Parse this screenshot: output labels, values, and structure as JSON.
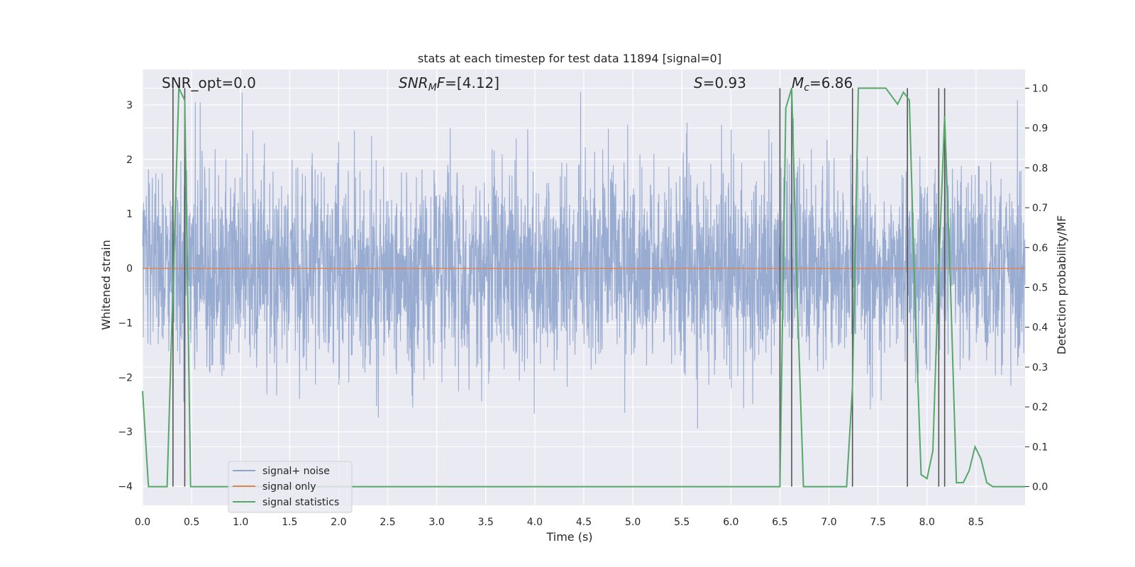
{
  "chart_data": {
    "type": "line",
    "title": "stats at each timestep for test data 11894 [signal=0]",
    "xlabel": "Time (s)",
    "ylabel_left": "Whitened strain",
    "ylabel_right": "Detection probability/MF",
    "xlim": [
      0.0,
      9.0
    ],
    "ylim_left": [
      -4.35,
      3.65
    ],
    "ylim_right": [
      -0.047,
      1.047
    ],
    "x_ticks": [
      "0.0",
      "0.5",
      "1.0",
      "1.5",
      "2.0",
      "2.5",
      "3.0",
      "3.5",
      "4.0",
      "4.5",
      "5.0",
      "5.5",
      "6.0",
      "6.5",
      "7.0",
      "7.5",
      "8.0",
      "8.5"
    ],
    "y_ticks_left": [
      "3",
      "2",
      "1",
      "0",
      "−1",
      "−2",
      "−3",
      "−4"
    ],
    "y_ticks_right": [
      "1.0",
      "0.9",
      "0.8",
      "0.7",
      "0.6",
      "0.5",
      "0.4",
      "0.3",
      "0.2",
      "0.1",
      "0.0"
    ],
    "grid": true,
    "legend_position": "lower-left",
    "annotations": {
      "snr_opt": "SNR_opt=0.0",
      "snr_mf_base": "SNR",
      "snr_mf_sub": "M",
      "snr_mf_rest": "F=[4.12]",
      "s_label": "S",
      "s_value": "=0.93",
      "mc_label": "M",
      "mc_sub": "c",
      "mc_value": "=6.86"
    },
    "series": [
      {
        "name": "signal+ noise",
        "color": "#8fa4cd",
        "axis": "left",
        "description": "whitened noise, approx gaussian sigma 0.9, dense samples",
        "seed": 11894,
        "std": 0.9
      },
      {
        "name": "signal only",
        "color": "#dd8452",
        "axis": "left",
        "x": [
          0.0,
          9.0
        ],
        "y": [
          0.0,
          0.0
        ]
      },
      {
        "name": "signal statistics",
        "color": "#55a868",
        "axis": "right",
        "x": [
          0.0,
          0.06,
          0.12,
          0.18,
          0.25,
          0.31,
          0.37,
          0.43,
          0.49,
          0.55,
          6.44,
          6.5,
          6.56,
          6.62,
          6.68,
          6.74,
          6.8,
          7.18,
          7.24,
          7.3,
          7.58,
          7.64,
          7.7,
          7.76,
          7.82,
          7.88,
          7.94,
          8.0,
          8.06,
          8.12,
          8.18,
          8.24,
          8.3,
          8.37,
          8.43,
          8.49,
          8.55,
          8.61,
          8.67,
          9.0
        ],
        "y": [
          0.24,
          0.0,
          0.0,
          0.0,
          0.0,
          0.5,
          1.0,
          0.97,
          0.0,
          0.0,
          0.0,
          0.0,
          0.95,
          1.0,
          0.45,
          0.0,
          0.0,
          0.0,
          0.25,
          1.0,
          1.0,
          0.98,
          0.96,
          0.99,
          0.97,
          0.45,
          0.03,
          0.02,
          0.09,
          0.55,
          0.93,
          0.5,
          0.01,
          0.01,
          0.04,
          0.1,
          0.07,
          0.01,
          0.0,
          0.0
        ]
      }
    ],
    "vertical_markers_x": [
      0.31,
      0.43,
      6.5,
      6.62,
      7.24,
      7.8,
      8.12,
      8.18
    ]
  }
}
